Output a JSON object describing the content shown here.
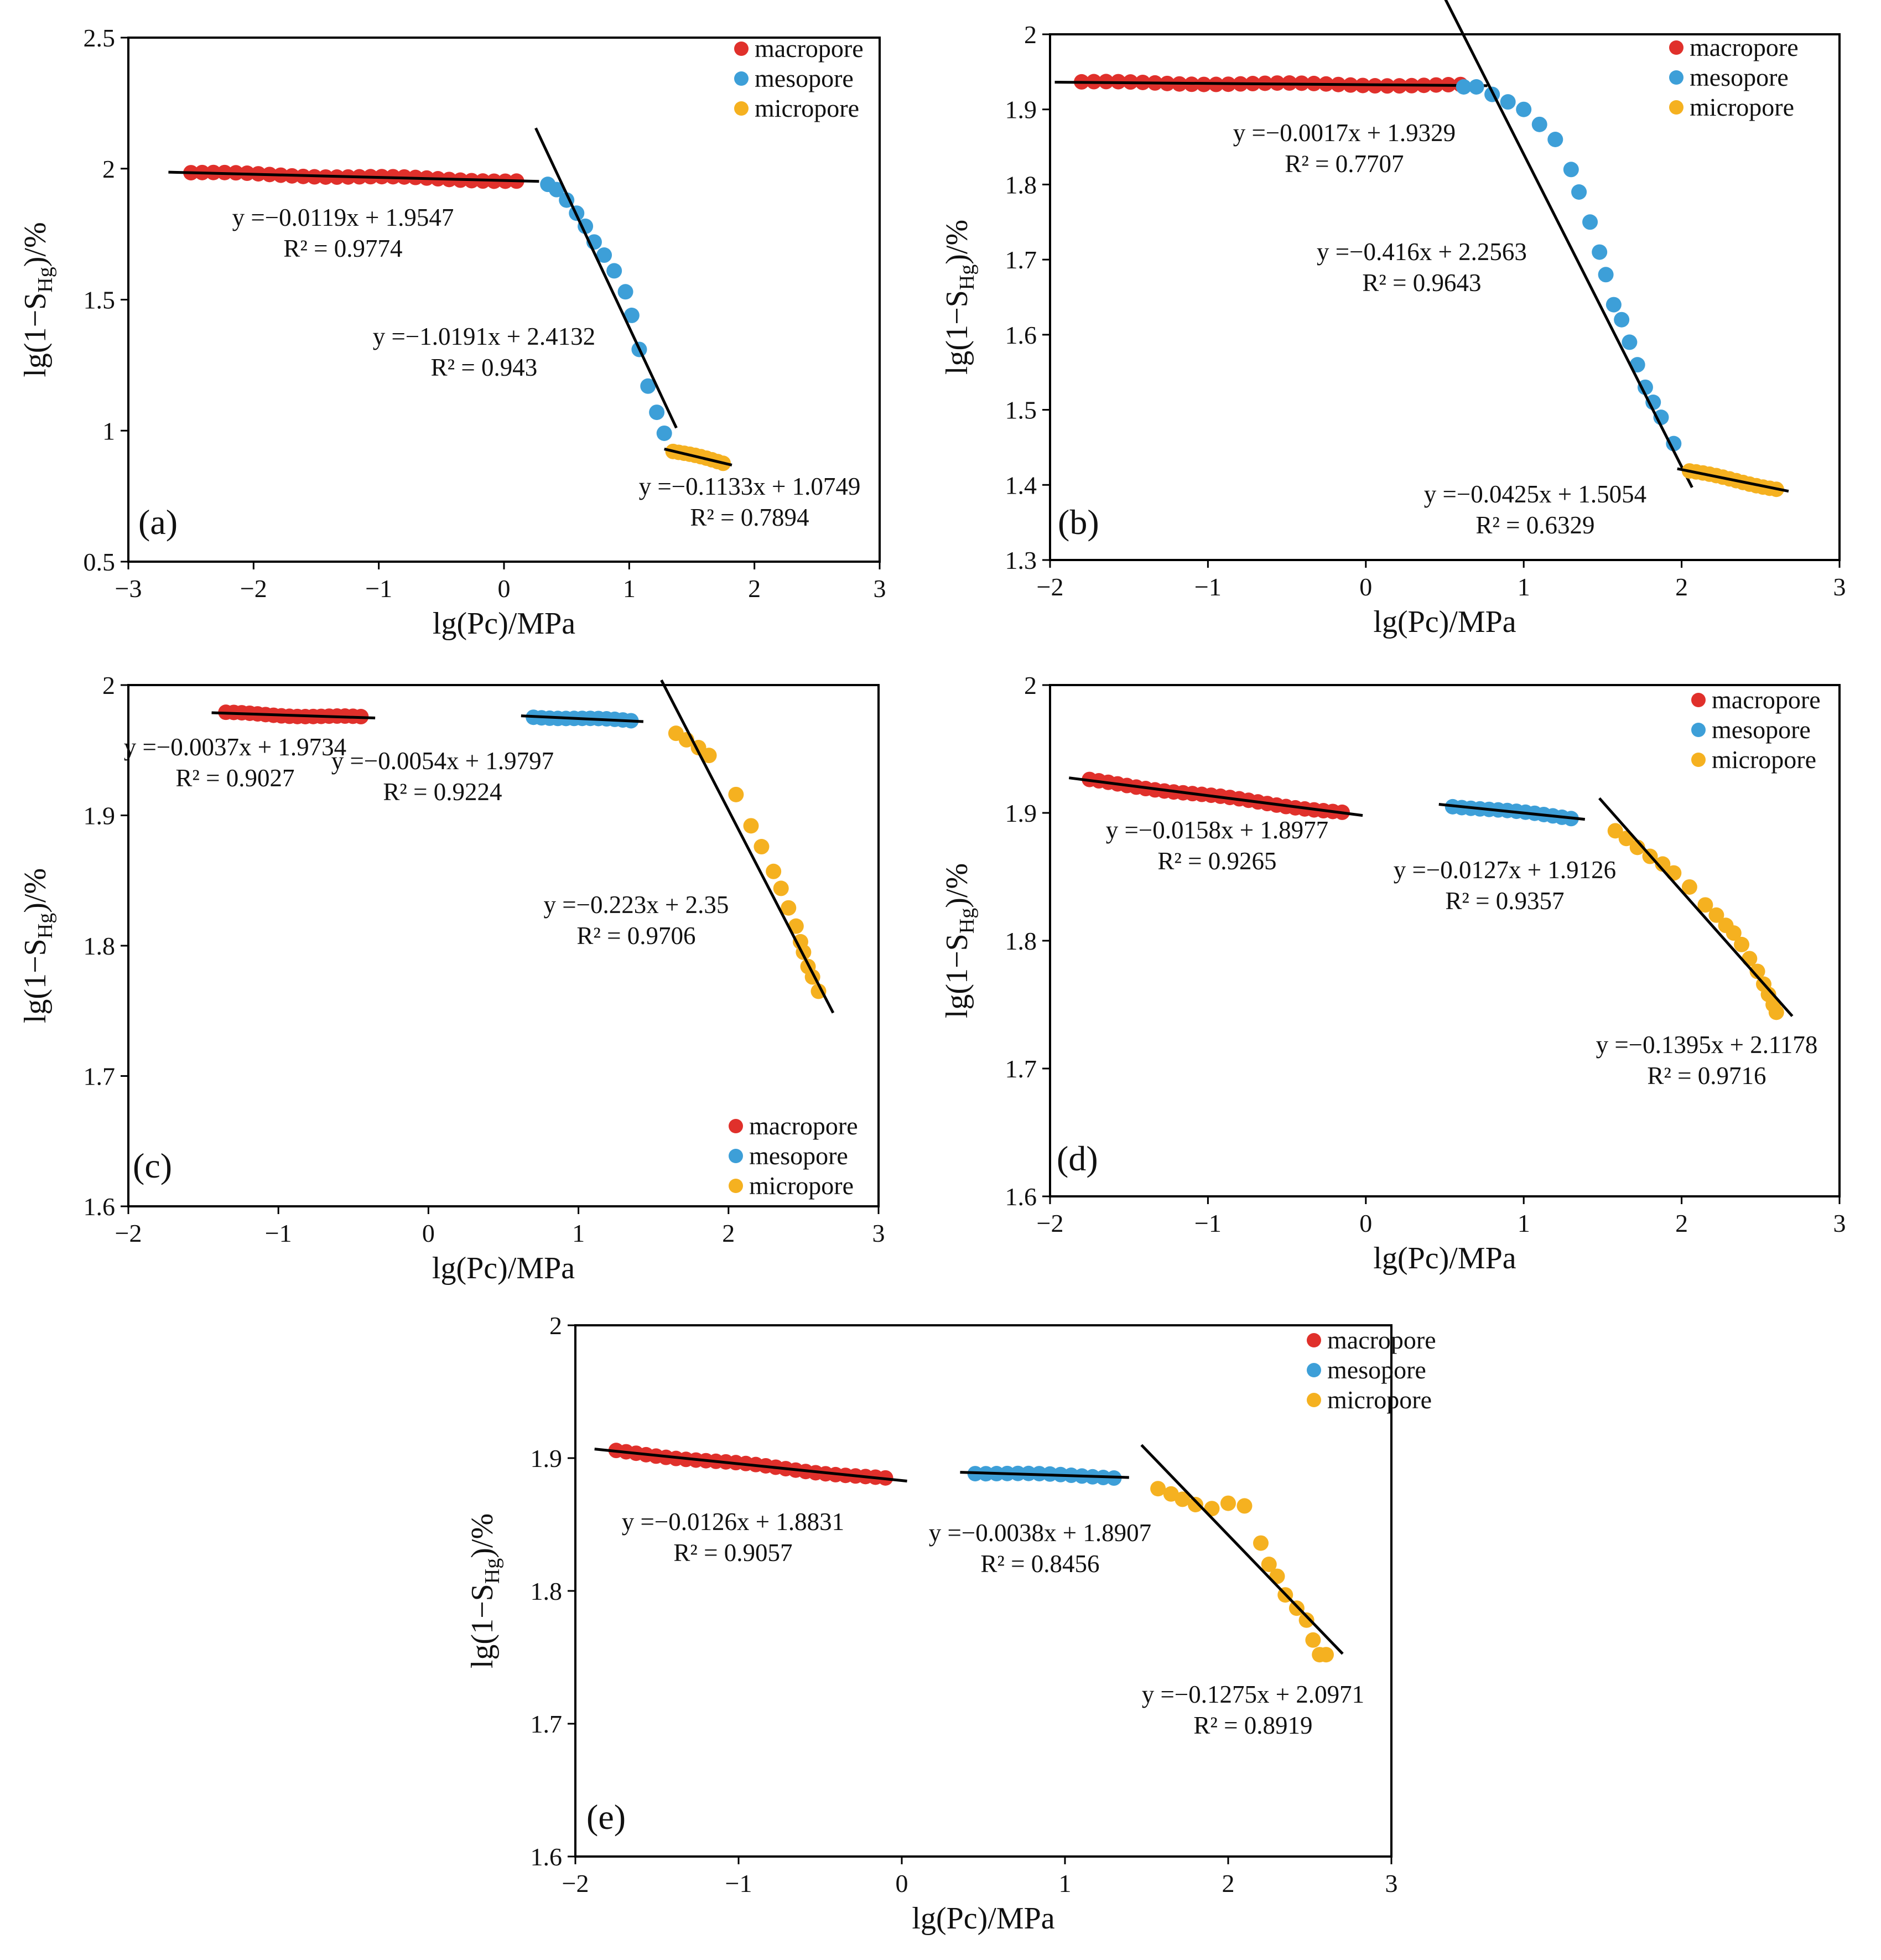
{
  "chart_data": [
    {
      "type": "scatter",
      "label": "(a)",
      "xlabel": "lg(Pc)/MPa",
      "ylabel": "lg(1−S_Hg)/%",
      "xlim": [
        -3,
        3
      ],
      "ylim": [
        0.5,
        2.5
      ],
      "xticks": [
        -3,
        -2,
        -1,
        0,
        1,
        2,
        3
      ],
      "yticks": [
        0.5,
        1,
        1.5,
        2,
        2.5
      ],
      "xtick_labels": [
        "−3",
        "−2",
        "−1",
        "0",
        "1",
        "2",
        "3"
      ],
      "ytick_labels": [
        "0.5",
        "1",
        "1.5",
        "2",
        "2.5"
      ],
      "legend": [
        "macropore",
        "mesopore",
        "micropore"
      ],
      "series": [
        {
          "name": "macropore",
          "color": "#e0302b",
          "x_range": [
            -2.5,
            0.1
          ],
          "n": 30,
          "fit": {
            "slope": -0.0119,
            "intercept": 1.9547
          }
        },
        {
          "name": "mesopore",
          "color": "#3d9fd8",
          "x": [
            0.35,
            0.42,
            0.5,
            0.58,
            0.65,
            0.72,
            0.8,
            0.88,
            0.97,
            1.02,
            1.08,
            1.15,
            1.22,
            1.28
          ],
          "y": [
            1.94,
            1.92,
            1.88,
            1.83,
            1.78,
            1.72,
            1.67,
            1.61,
            1.53,
            1.44,
            1.31,
            1.17,
            1.07,
            0.99
          ],
          "fit": {
            "slope": -1.0191,
            "intercept": 2.4132
          }
        },
        {
          "name": "micropore",
          "color": "#f5b120",
          "x_range": [
            1.35,
            1.75
          ],
          "n": 10,
          "fit": {
            "slope": -0.1133,
            "intercept": 1.0749
          }
        }
      ],
      "equations": [
        {
          "eq": "y =−0.0119x + 1.9547",
          "r2": "R² = 0.9774"
        },
        {
          "eq": "y =−1.0191x + 2.4132",
          "r2": "R² = 0.943"
        },
        {
          "eq": "y =−0.1133x + 1.0749",
          "r2": "R² = 0.7894"
        }
      ]
    },
    {
      "type": "scatter",
      "label": "(b)",
      "xlabel": "lg(Pc)/MPa",
      "ylabel": "lg(1−S_Hg)/%",
      "xlim": [
        -2,
        3
      ],
      "ylim": [
        1.3,
        2.0
      ],
      "xticks": [
        -2,
        -1,
        0,
        1,
        2,
        3
      ],
      "yticks": [
        1.3,
        1.4,
        1.5,
        1.6,
        1.7,
        1.8,
        1.9,
        2.0
      ],
      "xtick_labels": [
        "−2",
        "−1",
        "0",
        "1",
        "2",
        "3"
      ],
      "ytick_labels": [
        "1.3",
        "1.4",
        "1.5",
        "1.6",
        "1.7",
        "1.8",
        "1.9",
        "2"
      ],
      "legend": [
        "macropore",
        "mesopore",
        "micropore"
      ],
      "series": [
        {
          "name": "macropore",
          "color": "#e0302b",
          "x_range": [
            -1.8,
            0.6
          ],
          "n": 32,
          "fit": {
            "slope": -0.0017,
            "intercept": 1.9329
          }
        },
        {
          "name": "mesopore",
          "color": "#3d9fd8",
          "x": [
            0.62,
            0.7,
            0.8,
            0.9,
            1.0,
            1.1,
            1.2,
            1.3,
            1.35,
            1.42,
            1.48,
            1.52,
            1.57,
            1.62,
            1.67,
            1.72,
            1.77,
            1.82,
            1.87,
            1.95
          ],
          "y": [
            1.93,
            1.93,
            1.92,
            1.91,
            1.9,
            1.88,
            1.86,
            1.82,
            1.79,
            1.75,
            1.71,
            1.68,
            1.64,
            1.62,
            1.59,
            1.56,
            1.53,
            1.51,
            1.49,
            1.455
          ],
          "fit": {
            "slope": -0.416,
            "intercept": 2.2563
          }
        },
        {
          "name": "micropore",
          "color": "#f5b120",
          "x_range": [
            2.05,
            2.6
          ],
          "n": 14,
          "fit": {
            "slope": -0.0425,
            "intercept": 1.5054
          }
        }
      ],
      "equations": [
        {
          "eq": "y =−0.0017x + 1.9329",
          "r2": "R² = 0.7707"
        },
        {
          "eq": "y =−0.416x + 2.2563",
          "r2": "R² = 0.9643"
        },
        {
          "eq": "y =−0.0425x + 1.5054",
          "r2": "R² = 0.6329"
        }
      ]
    },
    {
      "type": "scatter",
      "label": "(c)",
      "xlabel": "lg(Pc)/MPa",
      "ylabel": "lg(1−S_Hg)/%",
      "xlim": [
        -2,
        3
      ],
      "ylim": [
        1.6,
        2.0
      ],
      "xticks": [
        -2,
        -1,
        0,
        1,
        2,
        3
      ],
      "yticks": [
        1.6,
        1.7,
        1.8,
        1.9,
        2.0
      ],
      "xtick_labels": [
        "−2",
        "−1",
        "0",
        "1",
        "2",
        "3"
      ],
      "ytick_labels": [
        "1.6",
        "1.7",
        "1.8",
        "1.9",
        "2"
      ],
      "legend": [
        "macropore",
        "mesopore",
        "micropore"
      ],
      "series": [
        {
          "name": "macropore",
          "color": "#e0302b",
          "x_range": [
            -1.35,
            -0.45
          ],
          "n": 18,
          "fit": {
            "slope": -0.0037,
            "intercept": 1.9734
          }
        },
        {
          "name": "mesopore",
          "color": "#3d9fd8",
          "x_range": [
            0.7,
            1.35
          ],
          "n": 13,
          "fit": {
            "slope": -0.0054,
            "intercept": 1.9797
          }
        },
        {
          "name": "micropore",
          "color": "#f5b120",
          "x": [
            1.65,
            1.72,
            1.8,
            1.87,
            2.05,
            2.15,
            2.22,
            2.3,
            2.35,
            2.4,
            2.45,
            2.48,
            2.5,
            2.53,
            2.56,
            2.6
          ],
          "y": [
            1.963,
            1.958,
            1.952,
            1.946,
            1.916,
            1.892,
            1.876,
            1.857,
            1.844,
            1.829,
            1.815,
            1.803,
            1.795,
            1.784,
            1.776,
            1.765
          ],
          "fit": {
            "slope": -0.223,
            "intercept": 2.35
          }
        }
      ],
      "equations": [
        {
          "eq": "y =−0.0037x + 1.9734",
          "r2": "R² = 0.9027"
        },
        {
          "eq": "y =−0.0054x + 1.9797",
          "r2": "R² = 0.9224"
        },
        {
          "eq": "y =−0.223x + 2.35",
          "r2": "R² = 0.9706"
        }
      ]
    },
    {
      "type": "scatter",
      "label": "(d)",
      "xlabel": "lg(Pc)/MPa",
      "ylabel": "lg(1−S_Hg)/%",
      "xlim": [
        -2,
        3
      ],
      "ylim": [
        1.6,
        2.0
      ],
      "xticks": [
        -2,
        -1,
        0,
        1,
        2,
        3
      ],
      "yticks": [
        1.6,
        1.7,
        1.8,
        1.9,
        2.0
      ],
      "xtick_labels": [
        "−2",
        "−1",
        "0",
        "1",
        "2",
        "3"
      ],
      "ytick_labels": [
        "1.6",
        "1.7",
        "1.8",
        "1.9",
        "2"
      ],
      "legend": [
        "macropore",
        "mesopore",
        "micropore"
      ],
      "series": [
        {
          "name": "macropore",
          "color": "#e0302b",
          "x_range": [
            -1.75,
            -0.15
          ],
          "n": 28,
          "fit": {
            "slope": -0.0158,
            "intercept": 1.8977
          }
        },
        {
          "name": "mesopore",
          "color": "#3d9fd8",
          "x_range": [
            0.55,
            1.3
          ],
          "n": 14,
          "fit": {
            "slope": -0.0127,
            "intercept": 1.9126
          }
        },
        {
          "name": "micropore",
          "color": "#f5b120",
          "x": [
            1.58,
            1.65,
            1.72,
            1.8,
            1.88,
            1.95,
            2.05,
            2.15,
            2.22,
            2.28,
            2.33,
            2.38,
            2.43,
            2.48,
            2.52,
            2.55,
            2.58,
            2.6
          ],
          "y": [
            1.886,
            1.88,
            1.873,
            1.866,
            1.86,
            1.853,
            1.842,
            1.828,
            1.82,
            1.812,
            1.806,
            1.797,
            1.786,
            1.776,
            1.766,
            1.758,
            1.75,
            1.744
          ],
          "fit": {
            "slope": -0.1395,
            "intercept": 2.1178
          }
        }
      ],
      "equations": [
        {
          "eq": "y =−0.0158x + 1.8977",
          "r2": "R² = 0.9265"
        },
        {
          "eq": "y =−0.0127x + 1.9126",
          "r2": "R² = 0.9357"
        },
        {
          "eq": "y =−0.1395x + 2.1178",
          "r2": "R² = 0.9716"
        }
      ]
    },
    {
      "type": "scatter",
      "label": "(e)",
      "xlabel": "lg(Pc)/MPa",
      "ylabel": "lg(1−S_Hg)/%",
      "xlim": [
        -2,
        3
      ],
      "ylim": [
        1.6,
        2.0
      ],
      "xticks": [
        -2,
        -1,
        0,
        1,
        2,
        3
      ],
      "yticks": [
        1.6,
        1.7,
        1.8,
        1.9,
        2.0
      ],
      "xtick_labels": [
        "−2",
        "−1",
        "0",
        "1",
        "2",
        "3"
      ],
      "ytick_labels": [
        "1.6",
        "1.7",
        "1.8",
        "1.9",
        "2"
      ],
      "legend": [
        "macropore",
        "mesopore",
        "micropore"
      ],
      "series": [
        {
          "name": "macropore",
          "color": "#e0302b",
          "x_range": [
            -1.75,
            -0.1
          ],
          "n": 28,
          "fit": {
            "slope": -0.0126,
            "intercept": 1.8831
          }
        },
        {
          "name": "mesopore",
          "color": "#3d9fd8",
          "x_range": [
            0.45,
            1.3
          ],
          "n": 14,
          "fit": {
            "slope": -0.0038,
            "intercept": 1.8907
          }
        },
        {
          "name": "micropore",
          "color": "#f5b120",
          "x": [
            1.57,
            1.65,
            1.72,
            1.8,
            1.9,
            2.0,
            2.1,
            2.2,
            2.25,
            2.3,
            2.35,
            2.42,
            2.48,
            2.52,
            2.56,
            2.6
          ],
          "y": [
            1.877,
            1.873,
            1.869,
            1.865,
            1.862,
            1.866,
            1.864,
            1.836,
            1.82,
            1.811,
            1.797,
            1.787,
            1.778,
            1.763,
            1.752,
            1.752
          ],
          "fit": {
            "slope": -0.1275,
            "intercept": 2.0971
          }
        }
      ],
      "equations": [
        {
          "eq": "y =−0.0126x + 1.8831",
          "r2": "R² = 0.9057"
        },
        {
          "eq": "y =−0.0038x + 1.8907",
          "r2": "R² = 0.8456"
        },
        {
          "eq": "y =−0.1275x + 2.0971",
          "r2": "R² = 0.8919"
        }
      ]
    }
  ]
}
